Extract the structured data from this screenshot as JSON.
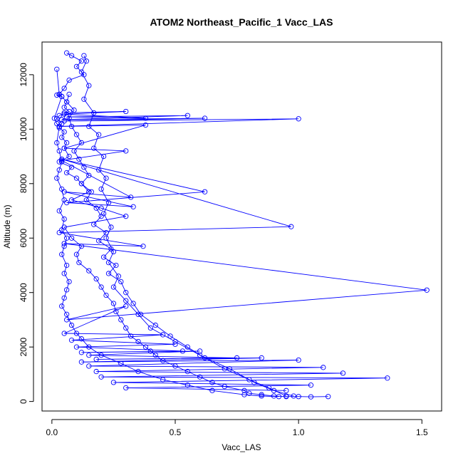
{
  "chart_data": {
    "type": "line",
    "title": "ATOM2 Northeast_Pacific_1 Vacc_LAS",
    "xlabel": "Vacc_LAS",
    "ylabel": "Altitude (m)",
    "xlim": [
      -0.04,
      1.58
    ],
    "ylim": [
      -350,
      13200
    ],
    "xticks": [
      0.0,
      0.5,
      1.0,
      1.5
    ],
    "xtick_labels": [
      "0.0",
      "0.5",
      "1.0",
      "1.5"
    ],
    "yticks": [
      0,
      2000,
      4000,
      6000,
      8000,
      10000,
      12000
    ],
    "ytick_labels": [
      "0",
      "2000",
      "4000",
      "6000",
      "8000",
      "10000",
      "12000"
    ],
    "grid": false,
    "color": "#0000ff",
    "series": [
      {
        "x": [
          0.06,
          0.08,
          0.12,
          0.1,
          0.13,
          0.07,
          0.05,
          0.03,
          0.04,
          0.06,
          0.05,
          0.07,
          0.03,
          0.02,
          0.04,
          0.03,
          0.05,
          0.04,
          0.06,
          0.05,
          0.07,
          0.03,
          0.08,
          0.06,
          0.1,
          0.12,
          0.15,
          0.08,
          0.2,
          0.3,
          0.05,
          0.08,
          0.12,
          0.1,
          0.11,
          0.15,
          0.18,
          0.2,
          0.22,
          0.25,
          0.26,
          0.28,
          0.3,
          0.32,
          0.35,
          0.38,
          0.4,
          0.42,
          0.45,
          0.5,
          0.55,
          0.6,
          0.65,
          0.7,
          0.78,
          0.8,
          0.85,
          0.9,
          0.95,
          1.0,
          1.05,
          1.12
        ],
        "y": [
          12800,
          12700,
          12500,
          12300,
          12000,
          11800,
          11500,
          11280,
          11200,
          11000,
          10800,
          10650,
          10500,
          10380,
          10200,
          10050,
          9900,
          9700,
          9500,
          9300,
          9000,
          8800,
          8600,
          8400,
          8200,
          8000,
          7700,
          7400,
          7100,
          6800,
          6400,
          6000,
          5700,
          5400,
          5100,
          4800,
          4500,
          4200,
          3900,
          3600,
          3300,
          3000,
          2700,
          2400,
          2200,
          2000,
          1850,
          1700,
          1500,
          1300,
          1100,
          900,
          700,
          550,
          400,
          300,
          250,
          200,
          180,
          180,
          170,
          180
        ]
      },
      {
        "x": [
          0.05,
          0.3,
          0.05,
          0.38,
          0.06,
          0.55,
          0.04,
          0.62,
          0.05,
          1.0,
          0.03,
          0.38,
          0.05,
          0.3,
          0.04,
          0.32,
          0.05,
          0.33,
          0.06,
          0.62,
          0.04,
          0.97,
          0.03,
          0.37,
          0.05,
          1.52,
          0.06,
          0.3,
          0.05,
          0.45,
          0.08,
          0.5,
          0.1,
          0.53,
          0.12,
          0.6,
          0.15,
          0.75,
          0.18,
          0.85,
          0.12,
          1.0,
          0.15,
          1.1,
          0.18,
          1.18,
          0.2,
          1.36,
          0.25,
          1.05,
          0.3,
          0.95
        ],
        "y": [
          10600,
          10650,
          10550,
          10400,
          10450,
          10500,
          10350,
          10400,
          10300,
          10380,
          10100,
          10150,
          9300,
          9200,
          8850,
          7500,
          7700,
          7150,
          7300,
          7700,
          8900,
          6420,
          6200,
          5700,
          5800,
          4090,
          3000,
          3500,
          2500,
          2450,
          2250,
          2100,
          2000,
          1850,
          1800,
          1850,
          1700,
          1600,
          1550,
          1600,
          1450,
          1520,
          1300,
          1250,
          1100,
          1040,
          900,
          860,
          700,
          600,
          500,
          400
        ]
      },
      {
        "x": [
          0.02,
          0.03,
          0.02,
          0.04,
          0.01,
          0.02,
          0.03,
          0.02,
          0.03,
          0.04,
          0.03,
          0.02,
          0.04,
          0.05,
          0.03,
          0.05,
          0.04,
          0.06,
          0.05,
          0.04,
          0.06,
          0.05,
          0.07,
          0.06,
          0.05,
          0.04,
          0.06,
          0.08,
          0.1,
          0.12,
          0.15,
          0.2,
          0.28,
          0.35,
          0.45,
          0.55,
          0.65,
          0.78,
          0.85,
          0.92
        ],
        "y": [
          12200,
          11280,
          11250,
          11200,
          10400,
          10200,
          10100,
          9500,
          9200,
          8800,
          8500,
          8200,
          7800,
          7400,
          7000,
          6700,
          6300,
          6000,
          5700,
          5400,
          5000,
          4700,
          4400,
          4100,
          3800,
          3500,
          3200,
          2800,
          2500,
          2300,
          2000,
          1700,
          1400,
          1100,
          800,
          600,
          400,
          250,
          200,
          180
        ]
      },
      {
        "x": [
          0.07,
          0.06,
          0.09,
          0.07,
          0.08,
          0.1,
          0.12,
          0.09,
          0.11,
          0.13,
          0.15,
          0.12,
          0.16,
          0.14,
          0.18,
          0.2,
          0.17,
          0.22,
          0.19,
          0.24,
          0.21,
          0.26,
          0.23,
          0.28,
          0.3,
          0.33,
          0.36,
          0.42,
          0.48,
          0.55,
          0.62,
          0.7,
          0.8,
          0.88,
          0.95
        ],
        "y": [
          11280,
          11000,
          10700,
          10400,
          10100,
          9800,
          9500,
          9200,
          8900,
          8600,
          8300,
          8000,
          7700,
          7400,
          7100,
          6800,
          6500,
          6200,
          5900,
          5600,
          5300,
          5000,
          4700,
          4400,
          4000,
          3600,
          3200,
          2800,
          2400,
          2000,
          1600,
          1200,
          800,
          500,
          200
        ]
      },
      {
        "x": [
          0.13,
          0.14,
          0.12,
          0.15,
          0.13,
          0.17,
          0.15,
          0.19,
          0.17,
          0.21,
          0.19,
          0.22,
          0.2,
          0.23,
          0.21,
          0.24,
          0.22,
          0.25,
          0.23,
          0.27,
          0.25,
          0.3,
          0.35,
          0.4,
          0.5,
          0.6,
          0.72,
          0.82,
          0.9,
          0.98
        ],
        "y": [
          12700,
          12500,
          12100,
          11600,
          11100,
          10600,
          10100,
          9800,
          9300,
          9000,
          8500,
          8200,
          7800,
          7300,
          6900,
          6400,
          6000,
          5500,
          5100,
          4600,
          4200,
          3700,
          3200,
          2700,
          2200,
          1700,
          1200,
          700,
          400,
          200
        ]
      }
    ]
  }
}
